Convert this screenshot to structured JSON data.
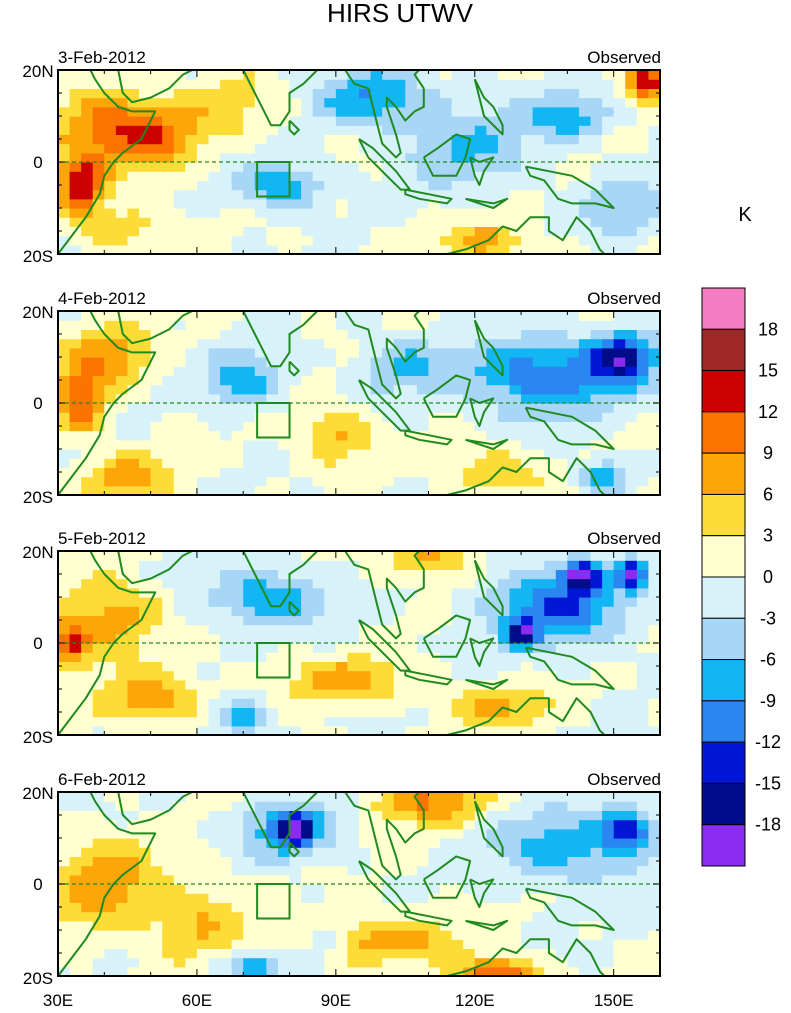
{
  "chart_data": {
    "type": "contour-map",
    "title": "HIRS UTWV",
    "units": "K",
    "panel_label": "Observed",
    "x_ticks": [
      "30E",
      "60E",
      "90E",
      "120E",
      "150E"
    ],
    "x_tick_values": [
      30,
      60,
      90,
      120,
      150
    ],
    "xlim": [
      30,
      160
    ],
    "y_ticks": [
      "20N",
      "0",
      "20S"
    ],
    "y_tick_values": [
      20,
      0,
      -20
    ],
    "ylim": [
      -20,
      20
    ],
    "box_region": {
      "lon": [
        73,
        80
      ],
      "lat": [
        -7.5,
        0
      ]
    },
    "colorbar": {
      "labels": [
        "18",
        "15",
        "12",
        "9",
        "6",
        "3",
        "0",
        "-3",
        "-6",
        "-9",
        "-12",
        "-15",
        "-18"
      ],
      "colors": [
        "#f47cc2",
        "#a02828",
        "#cc0000",
        "#fb7300",
        "#fda60a",
        "#fedc38",
        "#ffffd0",
        "#d8f2fa",
        "#a8d6f6",
        "#12b6f2",
        "#2a86f0",
        "#0018d6",
        "#000c8a",
        "#8a2cf0"
      ]
    },
    "panels": [
      {
        "date": "3-Feb-2012",
        "features": [
          {
            "lon": 35,
            "lat": -5,
            "v": 14,
            "sx": 5,
            "sy": 6
          },
          {
            "lon": 40,
            "lat": 8,
            "v": 10,
            "sx": 12,
            "sy": 8
          },
          {
            "lon": 52,
            "lat": 5,
            "v": 7,
            "sx": 10,
            "sy": 7
          },
          {
            "lon": 44,
            "lat": -14,
            "v": 5,
            "sx": 10,
            "sy": 5
          },
          {
            "lon": 68,
            "lat": 12,
            "v": 4,
            "sx": 12,
            "sy": 7
          },
          {
            "lon": 78,
            "lat": -5,
            "v": -9,
            "sx": 9,
            "sy": 5
          },
          {
            "lon": 98,
            "lat": 14,
            "v": -9,
            "sx": 12,
            "sy": 6
          },
          {
            "lon": 118,
            "lat": 3,
            "v": -6,
            "sx": 14,
            "sy": 9
          },
          {
            "lon": 140,
            "lat": 10,
            "v": -8,
            "sx": 9,
            "sy": 5
          },
          {
            "lon": 122,
            "lat": -17,
            "v": 7,
            "sx": 10,
            "sy": 4
          },
          {
            "lon": 157,
            "lat": 18,
            "v": 16,
            "sx": 4,
            "sy": 4
          },
          {
            "lon": 152,
            "lat": -10,
            "v": -6,
            "sx": 8,
            "sy": 6
          }
        ]
      },
      {
        "date": "4-Feb-2012",
        "features": [
          {
            "lon": 35,
            "lat": 0,
            "v": 12,
            "sx": 5,
            "sy": 6
          },
          {
            "lon": 40,
            "lat": 10,
            "v": 8,
            "sx": 10,
            "sy": 7
          },
          {
            "lon": 45,
            "lat": -16,
            "v": 7,
            "sx": 10,
            "sy": 5
          },
          {
            "lon": 70,
            "lat": 5,
            "v": -8,
            "sx": 8,
            "sy": 6
          },
          {
            "lon": 90,
            "lat": -7,
            "v": 7,
            "sx": 8,
            "sy": 6
          },
          {
            "lon": 105,
            "lat": 8,
            "v": -6,
            "sx": 10,
            "sy": 6
          },
          {
            "lon": 135,
            "lat": 6,
            "v": -12,
            "sx": 16,
            "sy": 8
          },
          {
            "lon": 152,
            "lat": 10,
            "v": -15,
            "sx": 7,
            "sy": 5
          },
          {
            "lon": 125,
            "lat": -15,
            "v": 6,
            "sx": 10,
            "sy": 5
          },
          {
            "lon": 148,
            "lat": -16,
            "v": -9,
            "sx": 5,
            "sy": 4
          }
        ]
      },
      {
        "date": "5-Feb-2012",
        "features": [
          {
            "lon": 33,
            "lat": 0,
            "v": 12,
            "sx": 4,
            "sy": 5
          },
          {
            "lon": 42,
            "lat": 6,
            "v": 8,
            "sx": 10,
            "sy": 8
          },
          {
            "lon": 50,
            "lat": -12,
            "v": 8,
            "sx": 10,
            "sy": 6
          },
          {
            "lon": 75,
            "lat": 10,
            "v": -9,
            "sx": 12,
            "sy": 6
          },
          {
            "lon": 92,
            "lat": -8,
            "v": 7,
            "sx": 14,
            "sy": 5
          },
          {
            "lon": 110,
            "lat": 18,
            "v": 8,
            "sx": 8,
            "sy": 4
          },
          {
            "lon": 138,
            "lat": 8,
            "v": -12,
            "sx": 14,
            "sy": 8
          },
          {
            "lon": 143,
            "lat": 15,
            "v": -17,
            "sx": 4,
            "sy": 3
          },
          {
            "lon": 154,
            "lat": 15,
            "v": -17,
            "sx": 3,
            "sy": 3
          },
          {
            "lon": 130,
            "lat": 2,
            "v": -15,
            "sx": 3,
            "sy": 3
          },
          {
            "lon": 70,
            "lat": -16,
            "v": -8,
            "sx": 5,
            "sy": 4
          },
          {
            "lon": 125,
            "lat": -14,
            "v": 6,
            "sx": 12,
            "sy": 5
          }
        ]
      },
      {
        "date": "6-Feb-2012",
        "features": [
          {
            "lon": 40,
            "lat": 0,
            "v": 8,
            "sx": 12,
            "sy": 10
          },
          {
            "lon": 60,
            "lat": -8,
            "v": 6,
            "sx": 10,
            "sy": 8
          },
          {
            "lon": 80,
            "lat": 12,
            "v": -10,
            "sx": 10,
            "sy": 6
          },
          {
            "lon": 81,
            "lat": 12,
            "v": -15,
            "sx": 3,
            "sy": 3
          },
          {
            "lon": 110,
            "lat": 18,
            "v": 9,
            "sx": 12,
            "sy": 5
          },
          {
            "lon": 100,
            "lat": -12,
            "v": 8,
            "sx": 16,
            "sy": 5
          },
          {
            "lon": 140,
            "lat": 8,
            "v": -8,
            "sx": 16,
            "sy": 8
          },
          {
            "lon": 153,
            "lat": 12,
            "v": -14,
            "sx": 5,
            "sy": 4
          },
          {
            "lon": 125,
            "lat": -19,
            "v": 13,
            "sx": 8,
            "sy": 3
          },
          {
            "lon": 72,
            "lat": -18,
            "v": -9,
            "sx": 6,
            "sy": 3
          },
          {
            "lon": 88,
            "lat": -12,
            "v": -7,
            "sx": 4,
            "sy": 3
          }
        ]
      }
    ]
  }
}
